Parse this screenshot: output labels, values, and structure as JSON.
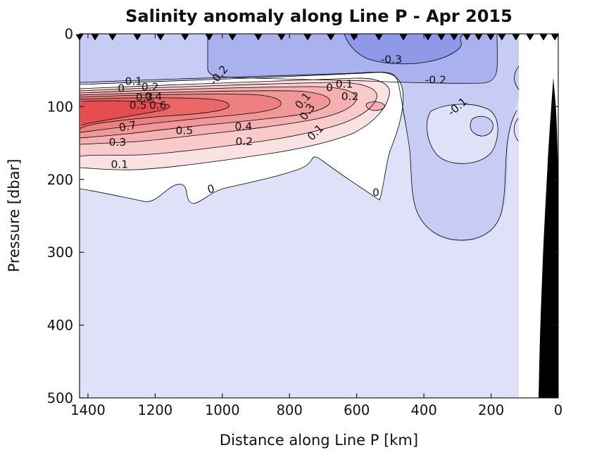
{
  "title": "Salinity anomaly along Line P - Apr 2015",
  "axes": {
    "x": {
      "label": "Distance along Line P [km]",
      "ticks": [
        1400,
        1200,
        1000,
        800,
        600,
        400,
        200,
        0
      ],
      "min": 0,
      "max": 1425,
      "reversed": true
    },
    "y": {
      "label": "Pressure [dbar]",
      "ticks": [
        0,
        100,
        200,
        300,
        400,
        500
      ],
      "min": 0,
      "max": 500,
      "increases_downward": true
    }
  },
  "chart_data": {
    "type": "heatmap",
    "subtype": "filled contour section (salinity anomaly)",
    "title": "Salinity anomaly along Line P - Apr 2015",
    "xlabel": "Distance along Line P [km]",
    "ylabel": "Pressure [dbar]",
    "x_range_km": [
      0,
      1425
    ],
    "y_range_dbar": [
      0,
      500
    ],
    "x_axis_reversed": true,
    "y_axis_inverted": true,
    "grid_on": false,
    "legend": "none",
    "contour_interval": 0.1,
    "contour_levels": [
      -0.3,
      -0.2,
      -0.1,
      0,
      0.1,
      0.2,
      0.3,
      0.4,
      0.5,
      0.6,
      0.7
    ],
    "data_extent_km": [
      117,
      1425
    ],
    "station_positions_km": [
      1425,
      1379,
      1327,
      1253,
      1184,
      1111,
      1039,
      970,
      893,
      824,
      746,
      677,
      608,
      534,
      461,
      388,
      348,
      310,
      272,
      237,
      201,
      168,
      126,
      84,
      44,
      10
    ],
    "grid": {
      "x_km": [
        1400,
        1300,
        1200,
        1100,
        1000,
        900,
        800,
        700,
        600,
        500,
        400,
        300,
        200,
        130
      ],
      "pressure_dbar": [
        0,
        30,
        60,
        90,
        110,
        140,
        170,
        200,
        250,
        300,
        400,
        500
      ],
      "anomaly": [
        [
          -0.15,
          -0.15,
          -0.15,
          -0.18,
          -0.25,
          -0.25,
          -0.28,
          -0.3,
          -0.32,
          -0.3,
          -0.28,
          -0.25,
          -0.2,
          -0.15
        ],
        [
          -0.15,
          -0.15,
          -0.15,
          -0.18,
          -0.25,
          -0.25,
          -0.28,
          -0.3,
          -0.3,
          -0.28,
          -0.25,
          -0.22,
          -0.18,
          -0.15
        ],
        [
          -0.12,
          -0.12,
          -0.13,
          -0.15,
          -0.2,
          -0.22,
          -0.22,
          -0.22,
          -0.22,
          -0.2,
          -0.18,
          -0.18,
          -0.15,
          -0.12
        ],
        [
          0.3,
          0.45,
          0.4,
          0.3,
          0.25,
          0.2,
          0.15,
          0.05,
          0.0,
          0.05,
          -0.05,
          -0.1,
          -0.1,
          -0.08
        ],
        [
          0.65,
          0.75,
          0.72,
          0.6,
          0.55,
          0.5,
          0.45,
          0.2,
          0.15,
          0.1,
          -0.05,
          -0.1,
          -0.12,
          -0.08
        ],
        [
          0.55,
          0.65,
          0.6,
          0.5,
          0.45,
          0.4,
          0.3,
          0.15,
          0.25,
          0.3,
          -0.05,
          -0.15,
          -0.1,
          -0.05
        ],
        [
          0.3,
          0.35,
          0.3,
          0.28,
          0.25,
          0.2,
          0.15,
          0.08,
          0.1,
          0.05,
          -0.05,
          -0.12,
          -0.08,
          -0.05
        ],
        [
          0.1,
          0.12,
          0.1,
          0.08,
          0.08,
          0.06,
          0.05,
          0.03,
          0.02,
          0.0,
          -0.05,
          -0.1,
          -0.05,
          -0.03
        ],
        [
          0.02,
          0.0,
          -0.02,
          0.0,
          0.0,
          -0.02,
          -0.02,
          0.0,
          -0.02,
          -0.05,
          -0.08,
          -0.08,
          -0.05,
          -0.02
        ],
        [
          -0.02,
          -0.03,
          -0.03,
          -0.03,
          -0.03,
          -0.03,
          -0.04,
          -0.04,
          -0.05,
          -0.08,
          -0.06,
          -0.04,
          -0.03,
          -0.02
        ],
        [
          -0.02,
          -0.02,
          -0.03,
          -0.03,
          -0.03,
          -0.03,
          -0.03,
          -0.03,
          -0.04,
          -0.04,
          -0.04,
          -0.03,
          -0.02,
          -0.02
        ],
        [
          -0.02,
          -0.02,
          -0.02,
          -0.03,
          -0.03,
          -0.03,
          -0.03,
          -0.03,
          -0.03,
          -0.03,
          -0.03,
          -0.02,
          -0.02,
          -0.02
        ]
      ]
    },
    "contour_labels": [
      {
        "text": "0.1",
        "km": 1264,
        "dbar": 70,
        "rot": 0
      },
      {
        "text": "0",
        "km": 1301,
        "dbar": 80,
        "rot": 0
      },
      {
        "text": "0.2",
        "km": 1215,
        "dbar": 78,
        "rot": 0
      },
      {
        "text": "0.3",
        "km": 1232,
        "dbar": 92,
        "rot": 0
      },
      {
        "text": "0.4",
        "km": 1205,
        "dbar": 91,
        "rot": 0
      },
      {
        "text": "0.5",
        "km": 1251,
        "dbar": 103,
        "rot": 0
      },
      {
        "text": "0.6",
        "km": 1192,
        "dbar": 103,
        "rot": 0
      },
      {
        "text": "0.7",
        "km": 1280,
        "dbar": 132,
        "rot": -10
      },
      {
        "text": "0.5",
        "km": 1113,
        "dbar": 138,
        "rot": 0
      },
      {
        "text": "0.4",
        "km": 937,
        "dbar": 132,
        "rot": 0
      },
      {
        "text": "0.3",
        "km": 1312,
        "dbar": 154,
        "rot": 0
      },
      {
        "text": "0.2",
        "km": 935,
        "dbar": 153,
        "rot": 0
      },
      {
        "text": "0.1",
        "km": 1306,
        "dbar": 184,
        "rot": 0
      },
      {
        "text": "-0.2",
        "km": 1002,
        "dbar": 60,
        "rot": -50
      },
      {
        "text": "0.1",
        "km": 752,
        "dbar": 95,
        "rot": -50
      },
      {
        "text": "0.3",
        "km": 738,
        "dbar": 110,
        "rot": -55
      },
      {
        "text": "0",
        "km": 681,
        "dbar": 79,
        "rot": 0
      },
      {
        "text": "0.1",
        "km": 637,
        "dbar": 74,
        "rot": 0
      },
      {
        "text": "0.2",
        "km": 620,
        "dbar": 91,
        "rot": 0
      },
      {
        "text": "0.1",
        "km": 715,
        "dbar": 139,
        "rot": -45
      },
      {
        "text": "-0.3",
        "km": 497,
        "dbar": 40,
        "rot": 0
      },
      {
        "text": "-0.2",
        "km": 365,
        "dbar": 68,
        "rot": 0
      },
      {
        "text": "-0.1",
        "km": 293,
        "dbar": 104,
        "rot": -40
      },
      {
        "text": "0",
        "km": 1031,
        "dbar": 218,
        "rot": -15
      },
      {
        "text": "0",
        "km": 543,
        "dbar": 223,
        "rot": 0
      }
    ],
    "colors": {
      "band_neg_below_m03": "#8e99e7",
      "band_neg_m02_m03": "#a9b2ee",
      "band_neg_m01_m02": "#c6ccf4",
      "band_neg_0_m01": "#dfe1f8",
      "band_pos_0_01": "#ffffff",
      "band_pos_01_02": "#fbe2e2",
      "band_pos_02_03": "#f8caca",
      "band_pos_03_04": "#f4b1b1",
      "band_pos_04_05": "#f09898",
      "band_pos_05_06": "#ed8080",
      "band_pos_06_07": "#e96767",
      "band_pos_above_07": "#e54e4e",
      "contour_line": "#000000",
      "station_marker": "#000000",
      "bathymetry": "#000000",
      "axis": "#1a1a1a"
    },
    "features": {
      "positive_core": "salty anomaly core reaching +0.7 near 100-150 dbar between ~800 and 1425 km",
      "secondary_positive": "weaker +0.2/+0.3 patch near 530-680 km at ~130-150 dbar",
      "surface_negative": "fresh surface layer (-0.2 to -0.35) in upper ~60 dbar, strongest 350-700 km",
      "bathymetry": "black seafloor/shelf profile near the coast (0-55 km) from ~55 dbar to 500 dbar",
      "station_markers": "26 downward black triangles along the top axis (Line P stations)"
    }
  }
}
